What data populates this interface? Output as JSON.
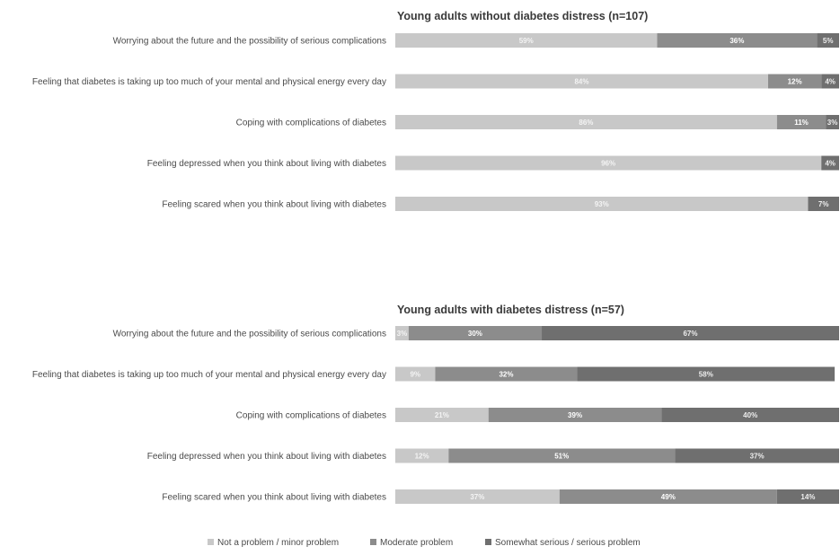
{
  "chart_data": {
    "type": "bar",
    "orientation": "horizontal",
    "stacked": "percent",
    "legend": {
      "position": "bottom",
      "items": [
        {
          "name": "Not a problem / minor problem",
          "color": "#c8c8c8"
        },
        {
          "name": "Moderate problem",
          "color": "#8c8c8c"
        },
        {
          "name": "Somewhat serious / serious problem",
          "color": "#6f6f6f"
        }
      ]
    },
    "panels": [
      {
        "title": "Young adults without diabetes distress (n=107)",
        "categories": [
          "Worrying about the future and the possibility of serious complications",
          "Feeling that diabetes is taking up too much of your mental and physical energy every day",
          "Coping with complications of diabetes",
          "Feeling depressed when you think about living with diabetes",
          "Feeling scared when you think about living with diabetes"
        ],
        "series": [
          {
            "name": "Not a problem / minor problem",
            "values": [
              59,
              84,
              86,
              96,
              93
            ]
          },
          {
            "name": "Moderate problem",
            "values": [
              36,
              12,
              11,
              0,
              0
            ]
          },
          {
            "name": "Somewhat serious / serious problem",
            "values": [
              5,
              4,
              3,
              4,
              7
            ]
          }
        ]
      },
      {
        "title": "Young adults with diabetes distress (n=57)",
        "categories": [
          "Worrying about the future and the possibility of serious complications",
          "Feeling that diabetes is taking up too much of your mental and physical energy every day",
          "Coping with complications of diabetes",
          "Feeling depressed when you think about living with diabetes",
          "Feeling scared when you think about living with diabetes"
        ],
        "series": [
          {
            "name": "Not a problem / minor problem",
            "values": [
              3,
              9,
              21,
              12,
              37
            ]
          },
          {
            "name": "Moderate problem",
            "values": [
              30,
              32,
              39,
              51,
              49
            ]
          },
          {
            "name": "Somewhat serious / serious problem",
            "values": [
              67,
              58,
              40,
              37,
              14
            ]
          }
        ]
      }
    ]
  }
}
